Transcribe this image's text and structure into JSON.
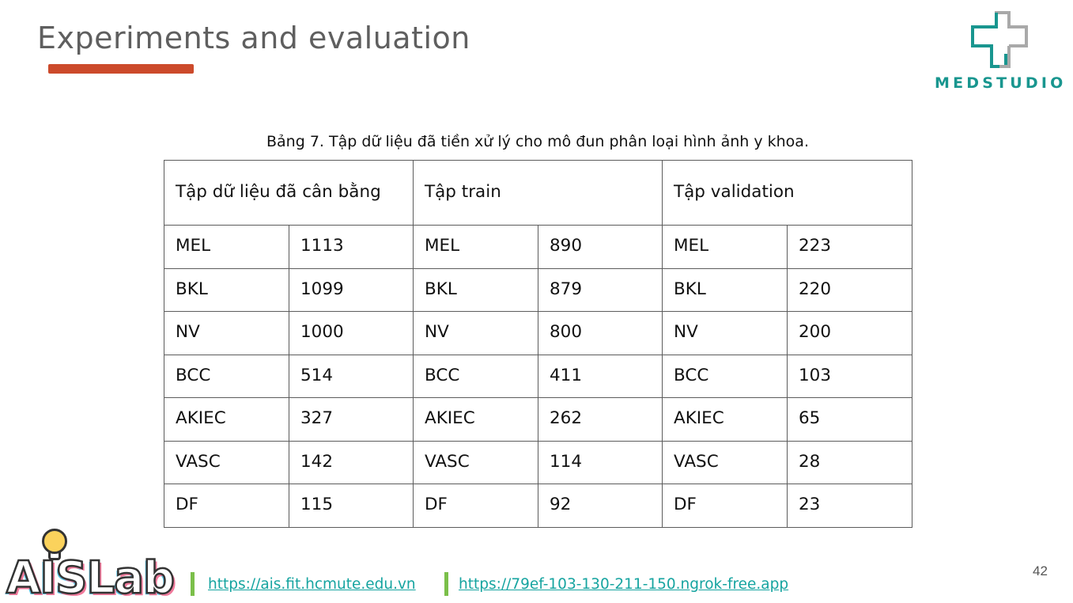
{
  "slide": {
    "title": "Experiments and evaluation",
    "page_number": "42",
    "brand_logo_text": "MEDSTUDIO",
    "ais_logo_text": "AISLab",
    "links": [
      "https://ais.fit.hcmute.edu.vn",
      "https://79ef-103-130-211-150.ngrok-free.app"
    ],
    "colors": {
      "accent_bar": "#cc4a2b",
      "brand_teal": "#19968f",
      "link": "#16a4a0",
      "separator": "#7bbf4a"
    }
  },
  "table": {
    "caption": "Bảng 7. Tập dữ liệu đã tiền xử lý cho mô đun phân loại hình ảnh y khoa.",
    "headers": [
      "Tập dữ liệu đã cân bằng",
      "Tập train",
      "Tập validation"
    ],
    "rows": [
      [
        "MEL",
        "1113",
        "MEL",
        "890",
        "MEL",
        "223"
      ],
      [
        "BKL",
        "1099",
        "BKL",
        "879",
        "BKL",
        "220"
      ],
      [
        "NV",
        "1000",
        "NV",
        "800",
        "NV",
        "200"
      ],
      [
        "BCC",
        "514",
        "BCC",
        "411",
        "BCC",
        "103"
      ],
      [
        "AKIEC",
        "327",
        "AKIEC",
        "262",
        "AKIEC",
        "65"
      ],
      [
        "VASC",
        "142",
        "VASC",
        "114",
        "VASC",
        "28"
      ],
      [
        "DF",
        "115",
        "DF",
        "92",
        "DF",
        "23"
      ]
    ]
  }
}
